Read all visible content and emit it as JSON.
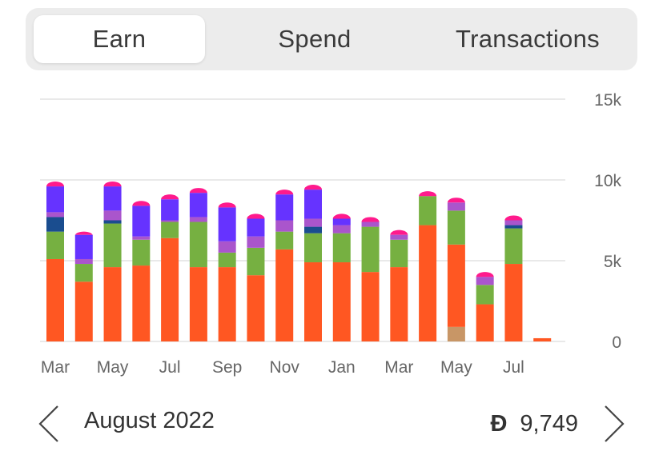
{
  "tabs": [
    {
      "label": "Earn",
      "active": true
    },
    {
      "label": "Spend",
      "active": false
    },
    {
      "label": "Transactions",
      "active": false
    }
  ],
  "footer": {
    "period": "August 2022",
    "currency_symbol": "Đ",
    "total": "9,749",
    "prev_icon": "chevron-left-icon",
    "next_icon": "chevron-right-icon"
  },
  "colors": {
    "orange": "#ff5722",
    "green": "#76b041",
    "purple": "#6633ff",
    "violet": "#aa55cc",
    "navy": "#1a4d8f",
    "pink": "#ff1a8c",
    "tan": "#c89666"
  },
  "chart_data": {
    "type": "bar",
    "stacked": true,
    "y_ticks": [
      "15k",
      "10k",
      "5k",
      "0"
    ],
    "ylim": [
      0,
      15000
    ],
    "x_tick_labels": [
      "Mar",
      "May",
      "Jul",
      "Sep",
      "Nov",
      "Jan",
      "Mar",
      "May",
      "Jul"
    ],
    "months": 18,
    "series": [
      {
        "color": "tan",
        "values": [
          0,
          0,
          0,
          0,
          0,
          0,
          0,
          0,
          0,
          0,
          0,
          0,
          0,
          0,
          900,
          0,
          0,
          0
        ]
      },
      {
        "color": "orange",
        "values": [
          5100,
          3700,
          4600,
          4700,
          6400,
          4600,
          4600,
          4100,
          5700,
          4900,
          4900,
          4300,
          4600,
          7200,
          5100,
          2300,
          4800,
          200
        ]
      },
      {
        "color": "green",
        "values": [
          1700,
          1100,
          2700,
          1600,
          1000,
          2800,
          900,
          1700,
          1100,
          1800,
          1800,
          2800,
          1700,
          1800,
          2100,
          1200,
          2200,
          0
        ]
      },
      {
        "color": "navy",
        "values": [
          900,
          0,
          200,
          0,
          0,
          0,
          0,
          0,
          0,
          400,
          0,
          0,
          0,
          0,
          0,
          0,
          200,
          0
        ]
      },
      {
        "color": "violet",
        "values": [
          300,
          300,
          600,
          200,
          100,
          300,
          700,
          700,
          700,
          500,
          500,
          300,
          300,
          0,
          500,
          500,
          300,
          0
        ]
      },
      {
        "color": "purple",
        "values": [
          1600,
          1500,
          1500,
          1900,
          1300,
          1500,
          2100,
          1100,
          1600,
          1800,
          400,
          0,
          0,
          0,
          0,
          0,
          0,
          0
        ]
      },
      {
        "color": "pink",
        "values": [
          300,
          200,
          300,
          300,
          300,
          300,
          300,
          300,
          300,
          300,
          300,
          300,
          300,
          300,
          300,
          300,
          300,
          0
        ]
      }
    ]
  }
}
